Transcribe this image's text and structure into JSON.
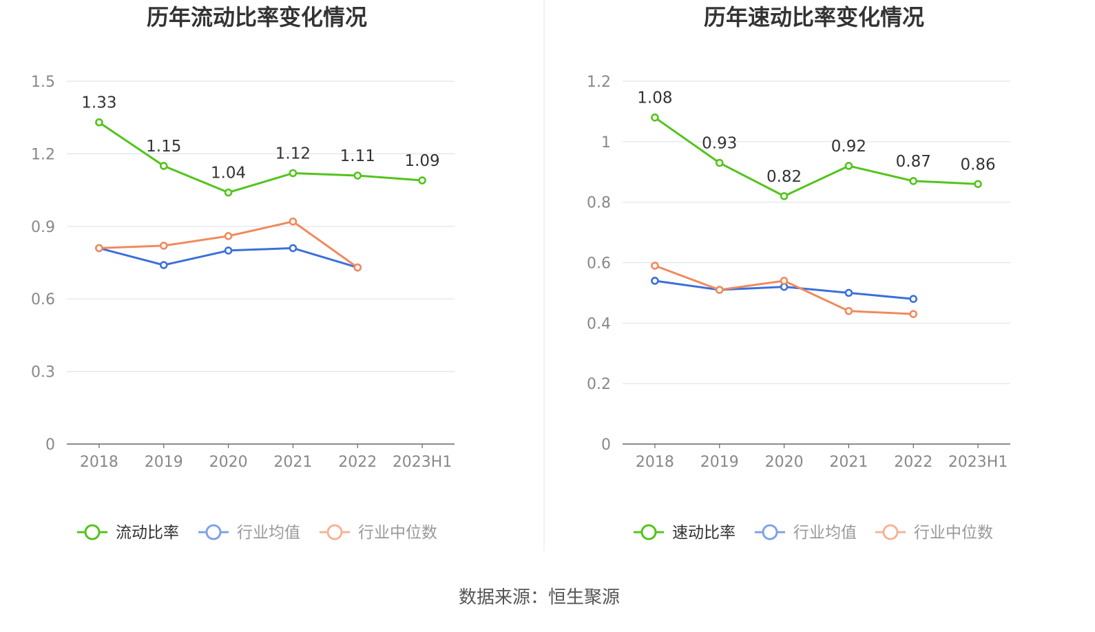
{
  "source_label": "数据来源：恒生聚源",
  "chart_data": [
    {
      "type": "line",
      "title": "历年流动比率变化情况",
      "categories": [
        "2018",
        "2019",
        "2020",
        "2021",
        "2022",
        "2023H1"
      ],
      "ylim": [
        0,
        1.5
      ],
      "yticks": [
        "0",
        "0.3",
        "0.6",
        "0.9",
        "1.2",
        "1.5"
      ],
      "grid": true,
      "legend_position": "bottom",
      "series": [
        {
          "name": "流动比率",
          "color": "#52c41a",
          "values": [
            1.33,
            1.15,
            1.04,
            1.12,
            1.11,
            1.09
          ],
          "labels": [
            "1.33",
            "1.15",
            "1.04",
            "1.12",
            "1.11",
            "1.09"
          ]
        },
        {
          "name": "行业均值",
          "color": "#3a6fdc",
          "values": [
            0.81,
            0.74,
            0.8,
            0.81,
            0.73,
            null
          ]
        },
        {
          "name": "行业中位数",
          "color": "#f08a5d",
          "values": [
            0.81,
            0.82,
            0.86,
            0.92,
            0.73,
            null
          ]
        }
      ]
    },
    {
      "type": "line",
      "title": "历年速动比率变化情况",
      "categories": [
        "2018",
        "2019",
        "2020",
        "2021",
        "2022",
        "2023H1"
      ],
      "ylim": [
        0,
        1.2
      ],
      "yticks": [
        "0",
        "0.2",
        "0.4",
        "0.6",
        "0.8",
        "1",
        "1.2"
      ],
      "grid": true,
      "legend_position": "bottom",
      "series": [
        {
          "name": "速动比率",
          "color": "#52c41a",
          "values": [
            1.08,
            0.93,
            0.82,
            0.92,
            0.87,
            0.86
          ],
          "labels": [
            "1.08",
            "0.93",
            "0.82",
            "0.92",
            "0.87",
            "0.86"
          ]
        },
        {
          "name": "行业均值",
          "color": "#3a6fdc",
          "values": [
            0.54,
            0.51,
            0.52,
            0.5,
            0.48,
            null
          ]
        },
        {
          "name": "行业中位数",
          "color": "#f08a5d",
          "values": [
            0.59,
            0.51,
            0.54,
            0.44,
            0.43,
            null
          ]
        }
      ]
    }
  ]
}
